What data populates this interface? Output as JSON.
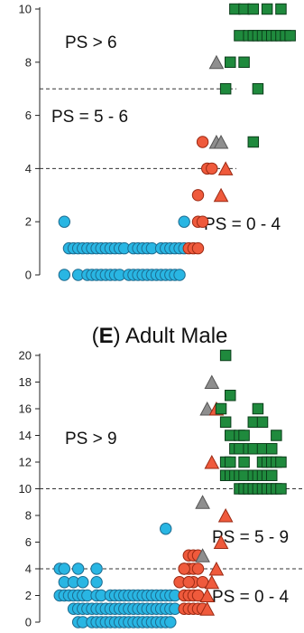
{
  "chart_data": [
    {
      "type": "scatter",
      "title": "",
      "ylim": [
        0,
        10
      ],
      "yticks": [
        "0",
        "2",
        "4",
        "6",
        "8",
        "10"
      ],
      "thresholds": [
        4,
        7
      ],
      "annotations": [
        "PS > 6",
        "PS = 5 - 6",
        "PS = 0 - 4"
      ],
      "series": [
        {
          "marker": "circle",
          "color": "#29b6e3",
          "points": [
            [
              0.03,
              2
            ],
            [
              0.04,
              1
            ],
            [
              0.05,
              1
            ],
            [
              0.06,
              1
            ],
            [
              0.07,
              1
            ],
            [
              0.08,
              1
            ],
            [
              0.09,
              1
            ],
            [
              0.1,
              1
            ],
            [
              0.11,
              1
            ],
            [
              0.12,
              1
            ],
            [
              0.13,
              1
            ],
            [
              0.14,
              1
            ],
            [
              0.15,
              1
            ],
            [
              0.16,
              1
            ],
            [
              0.18,
              1
            ],
            [
              0.19,
              1
            ],
            [
              0.2,
              1
            ],
            [
              0.21,
              1
            ],
            [
              0.22,
              1
            ],
            [
              0.24,
              1
            ],
            [
              0.25,
              1
            ],
            [
              0.26,
              1
            ],
            [
              0.27,
              1
            ],
            [
              0.28,
              1
            ],
            [
              0.29,
              1
            ],
            [
              0.03,
              0
            ],
            [
              0.06,
              0
            ],
            [
              0.08,
              0
            ],
            [
              0.09,
              0
            ],
            [
              0.1,
              0
            ],
            [
              0.11,
              0
            ],
            [
              0.12,
              0
            ],
            [
              0.13,
              0
            ],
            [
              0.14,
              0
            ],
            [
              0.15,
              0
            ],
            [
              0.17,
              0
            ],
            [
              0.18,
              0
            ],
            [
              0.19,
              0
            ],
            [
              0.2,
              0
            ],
            [
              0.21,
              0
            ],
            [
              0.22,
              0
            ],
            [
              0.23,
              0
            ],
            [
              0.24,
              0
            ],
            [
              0.25,
              0
            ],
            [
              0.26,
              0
            ],
            [
              0.27,
              0
            ],
            [
              0.28,
              0
            ],
            [
              0.29,
              2
            ]
          ]
        },
        {
          "marker": "circle",
          "color": "#ef5a3c",
          "points": [
            [
              0.3,
              1
            ],
            [
              0.31,
              1
            ],
            [
              0.32,
              1
            ],
            [
              0.32,
              2
            ],
            [
              0.33,
              2
            ],
            [
              0.32,
              3
            ],
            [
              0.34,
              4
            ],
            [
              0.35,
              4
            ],
            [
              0.33,
              5
            ]
          ]
        },
        {
          "marker": "triangle",
          "color": "#8e8e8e",
          "points": [
            [
              0.36,
              5
            ],
            [
              0.37,
              5
            ],
            [
              0.36,
              8
            ]
          ]
        },
        {
          "marker": "triangle",
          "color": "#ef5a3c",
          "points": [
            [
              0.37,
              3
            ],
            [
              0.38,
              4
            ]
          ]
        },
        {
          "marker": "square",
          "color": "#1f8a3d",
          "points": [
            [
              0.4,
              10
            ],
            [
              0.42,
              10
            ],
            [
              0.44,
              10
            ],
            [
              0.47,
              10
            ],
            [
              0.5,
              10
            ],
            [
              0.41,
              9
            ],
            [
              0.43,
              9
            ],
            [
              0.44,
              9
            ],
            [
              0.45,
              9
            ],
            [
              0.46,
              9
            ],
            [
              0.47,
              9
            ],
            [
              0.48,
              9
            ],
            [
              0.49,
              9
            ],
            [
              0.5,
              9
            ],
            [
              0.51,
              9
            ],
            [
              0.52,
              9
            ],
            [
              0.39,
              8
            ],
            [
              0.42,
              8
            ],
            [
              0.38,
              7
            ],
            [
              0.45,
              7
            ],
            [
              0.44,
              5
            ]
          ]
        }
      ]
    },
    {
      "type": "scatter",
      "title": "Adult Male",
      "title_prefix": "(E)",
      "ylim": [
        0,
        20
      ],
      "yticks": [
        "0",
        "2",
        "4",
        "6",
        "8",
        "10",
        "12",
        "14",
        "16",
        "18",
        "20"
      ],
      "thresholds": [
        4,
        10
      ],
      "annotations": [
        "PS > 9",
        "PS = 5 - 9",
        "PS = 0 - 4"
      ],
      "series": [
        {
          "marker": "circle",
          "color": "#29b6e3",
          "points": [
            [
              0.02,
              4
            ],
            [
              0.03,
              4
            ],
            [
              0.06,
              4
            ],
            [
              0.1,
              4
            ],
            [
              0.03,
              3
            ],
            [
              0.05,
              3
            ],
            [
              0.07,
              3
            ],
            [
              0.1,
              3
            ],
            [
              0.02,
              2
            ],
            [
              0.03,
              2
            ],
            [
              0.04,
              2
            ],
            [
              0.05,
              2
            ],
            [
              0.06,
              2
            ],
            [
              0.07,
              2
            ],
            [
              0.08,
              2
            ],
            [
              0.1,
              2
            ],
            [
              0.11,
              2
            ],
            [
              0.13,
              2
            ],
            [
              0.14,
              2
            ],
            [
              0.15,
              2
            ],
            [
              0.16,
              2
            ],
            [
              0.17,
              2
            ],
            [
              0.18,
              2
            ],
            [
              0.19,
              2
            ],
            [
              0.2,
              2
            ],
            [
              0.21,
              2
            ],
            [
              0.22,
              2
            ],
            [
              0.23,
              2
            ],
            [
              0.24,
              2
            ],
            [
              0.25,
              2
            ],
            [
              0.26,
              2
            ],
            [
              0.27,
              2
            ],
            [
              0.05,
              1
            ],
            [
              0.06,
              1
            ],
            [
              0.07,
              1
            ],
            [
              0.08,
              1
            ],
            [
              0.09,
              1
            ],
            [
              0.1,
              1
            ],
            [
              0.11,
              1
            ],
            [
              0.12,
              1
            ],
            [
              0.13,
              1
            ],
            [
              0.14,
              1
            ],
            [
              0.15,
              1
            ],
            [
              0.16,
              1
            ],
            [
              0.17,
              1
            ],
            [
              0.18,
              1
            ],
            [
              0.19,
              1
            ],
            [
              0.2,
              1
            ],
            [
              0.21,
              1
            ],
            [
              0.22,
              1
            ],
            [
              0.23,
              1
            ],
            [
              0.24,
              1
            ],
            [
              0.25,
              1
            ],
            [
              0.26,
              1
            ],
            [
              0.27,
              1
            ],
            [
              0.06,
              0
            ],
            [
              0.07,
              0
            ],
            [
              0.09,
              0
            ],
            [
              0.1,
              0
            ],
            [
              0.11,
              0
            ],
            [
              0.12,
              0
            ],
            [
              0.13,
              0
            ],
            [
              0.14,
              0
            ],
            [
              0.15,
              0
            ],
            [
              0.16,
              0
            ],
            [
              0.17,
              0
            ],
            [
              0.18,
              0
            ],
            [
              0.19,
              0
            ],
            [
              0.2,
              0
            ],
            [
              0.21,
              0
            ],
            [
              0.22,
              0
            ],
            [
              0.23,
              0
            ],
            [
              0.24,
              0
            ],
            [
              0.25,
              0
            ],
            [
              0.26,
              0
            ],
            [
              0.25,
              7
            ]
          ]
        },
        {
          "marker": "circle",
          "color": "#ef5a3c",
          "points": [
            [
              0.29,
              1
            ],
            [
              0.3,
              1
            ],
            [
              0.31,
              1
            ],
            [
              0.32,
              1
            ],
            [
              0.33,
              1
            ],
            [
              0.29,
              2
            ],
            [
              0.3,
              2
            ],
            [
              0.31,
              2
            ],
            [
              0.32,
              2
            ],
            [
              0.28,
              3
            ],
            [
              0.3,
              3
            ],
            [
              0.31,
              3
            ],
            [
              0.33,
              3
            ],
            [
              0.29,
              4
            ],
            [
              0.3,
              4
            ],
            [
              0.31,
              4
            ],
            [
              0.32,
              4
            ],
            [
              0.3,
              5
            ],
            [
              0.31,
              5
            ],
            [
              0.32,
              5
            ],
            [
              0.29,
              4
            ],
            [
              0.3,
              3
            ]
          ]
        },
        {
          "marker": "triangle",
          "color": "#8e8e8e",
          "points": [
            [
              0.33,
              5
            ],
            [
              0.33,
              9
            ],
            [
              0.35,
              18
            ],
            [
              0.34,
              16
            ]
          ]
        },
        {
          "marker": "triangle",
          "color": "#ef5a3c",
          "points": [
            [
              0.34,
              1
            ],
            [
              0.34,
              2
            ],
            [
              0.35,
              3
            ],
            [
              0.36,
              4
            ],
            [
              0.37,
              6
            ],
            [
              0.38,
              8
            ],
            [
              0.35,
              12
            ],
            [
              0.36,
              16
            ]
          ]
        },
        {
          "marker": "square",
          "color": "#1f8a3d",
          "points": [
            [
              0.38,
              20
            ],
            [
              0.39,
              17
            ],
            [
              0.37,
              16
            ],
            [
              0.38,
              15
            ],
            [
              0.39,
              14
            ],
            [
              0.41,
              14
            ],
            [
              0.42,
              14
            ],
            [
              0.44,
              15
            ],
            [
              0.45,
              16
            ],
            [
              0.46,
              15
            ],
            [
              0.49,
              14
            ],
            [
              0.4,
              13
            ],
            [
              0.41,
              13
            ],
            [
              0.43,
              13
            ],
            [
              0.44,
              13
            ],
            [
              0.46,
              13
            ],
            [
              0.48,
              13
            ],
            [
              0.38,
              12
            ],
            [
              0.39,
              12
            ],
            [
              0.42,
              12
            ],
            [
              0.46,
              12
            ],
            [
              0.47,
              12
            ],
            [
              0.48,
              12
            ],
            [
              0.49,
              12
            ],
            [
              0.5,
              12
            ],
            [
              0.38,
              11
            ],
            [
              0.39,
              11
            ],
            [
              0.4,
              11
            ],
            [
              0.41,
              11
            ],
            [
              0.42,
              11
            ],
            [
              0.44,
              11
            ],
            [
              0.45,
              11
            ],
            [
              0.46,
              11
            ],
            [
              0.47,
              11
            ],
            [
              0.48,
              11
            ],
            [
              0.41,
              10
            ],
            [
              0.42,
              10
            ],
            [
              0.43,
              10
            ],
            [
              0.44,
              10
            ],
            [
              0.45,
              10
            ],
            [
              0.46,
              10
            ],
            [
              0.47,
              10
            ],
            [
              0.48,
              10
            ],
            [
              0.49,
              10
            ],
            [
              0.5,
              10
            ]
          ]
        }
      ]
    }
  ]
}
